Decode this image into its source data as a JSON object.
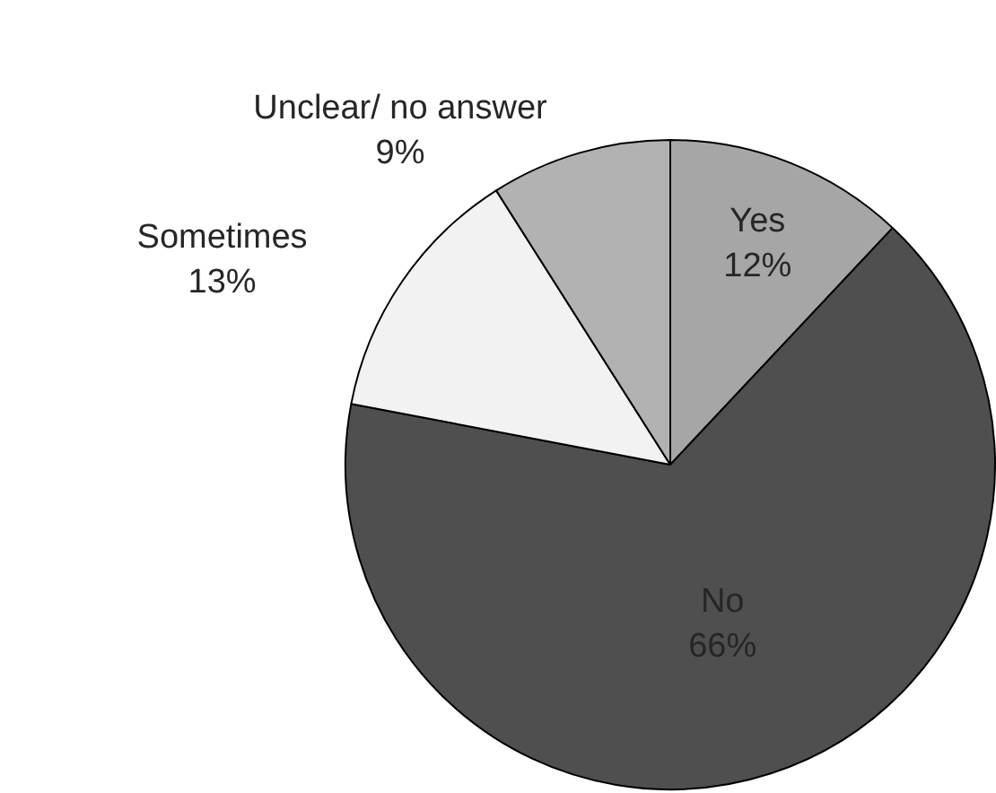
{
  "chart_data": {
    "type": "pie",
    "categories": [
      "Yes",
      "No",
      "Sometimes",
      "Unclear/ no answer"
    ],
    "values": [
      12,
      66,
      13,
      9
    ],
    "colors": [
      "#a6a6a6",
      "#4f4f4f",
      "#f2f2f2",
      "#b2b2b2"
    ],
    "value_labels": [
      "12%",
      "66%",
      "13%",
      "9%"
    ],
    "legend": false
  }
}
